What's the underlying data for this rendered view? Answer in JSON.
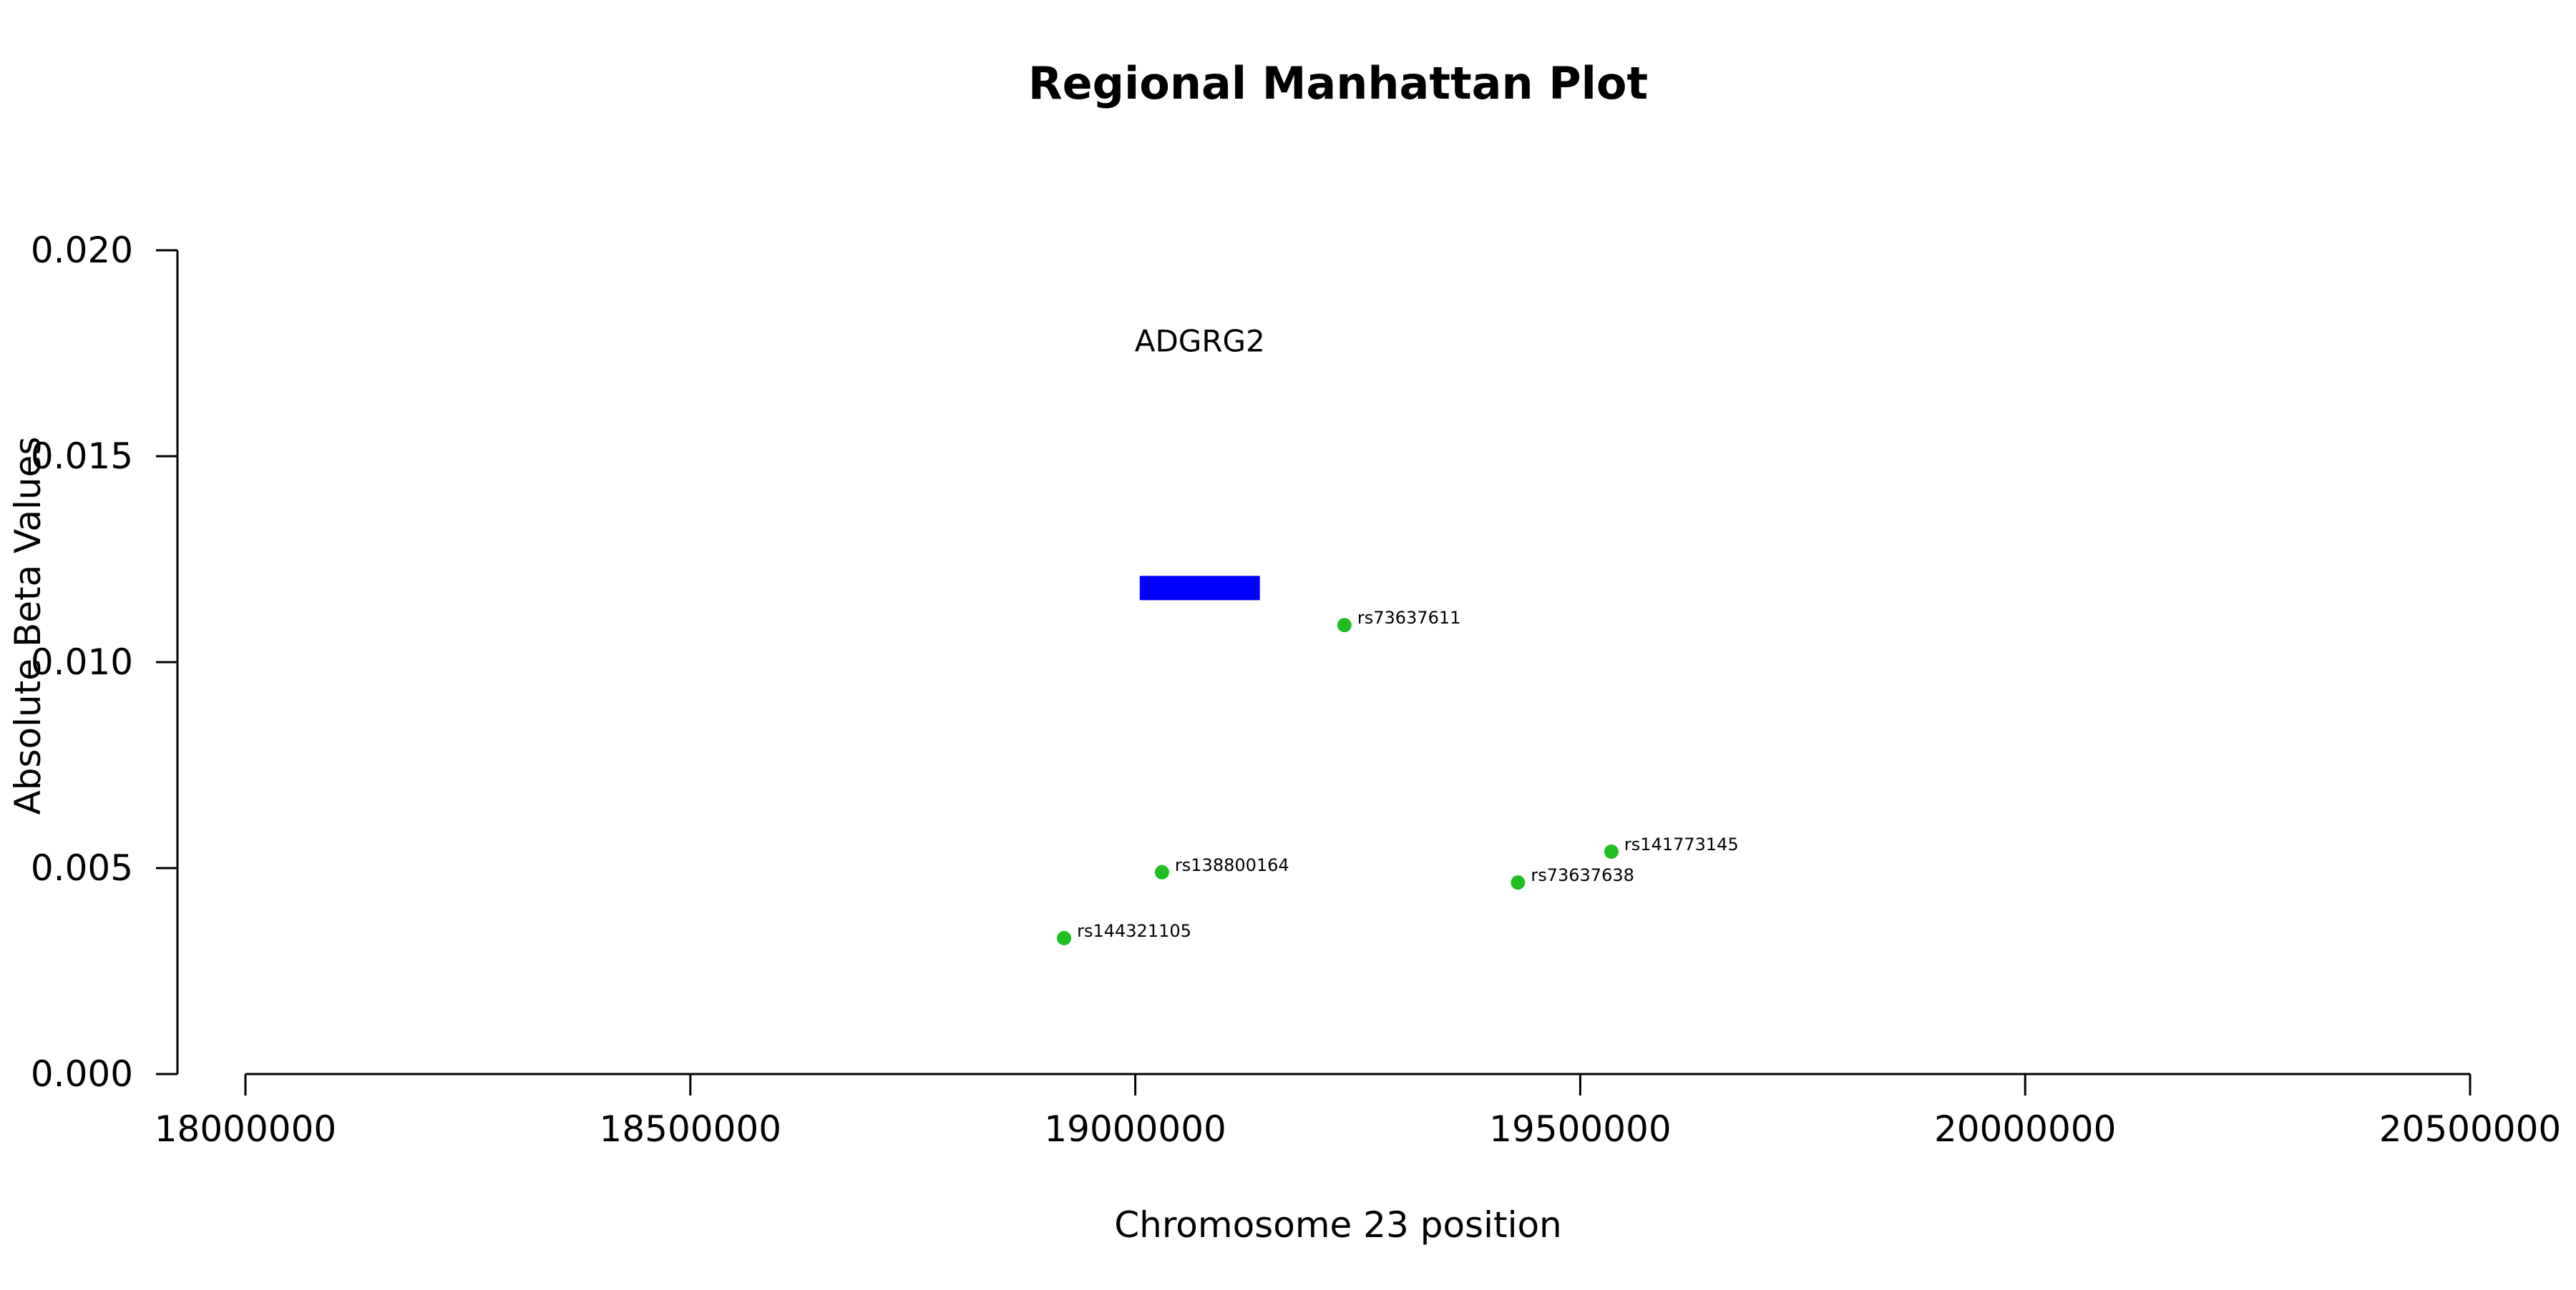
{
  "chart_data": {
    "type": "scatter",
    "title": "Regional Manhattan Plot",
    "xlabel": "Chromosome 23 position",
    "ylabel": "Absolute Beta Values",
    "xlim": [
      18000000,
      20500000
    ],
    "ylim": [
      0,
      0.02
    ],
    "x_ticks": [
      18000000,
      18500000,
      19000000,
      19500000,
      20000000,
      20500000
    ],
    "x_tick_labels": [
      "18000000",
      "18500000",
      "19000000",
      "19500000",
      "20000000",
      "20500000"
    ],
    "y_ticks": [
      0,
      0.005,
      0.01,
      0.015,
      0.02
    ],
    "y_tick_labels": [
      "0.000",
      "0.005",
      "0.010",
      "0.015",
      "0.020"
    ],
    "grid": false,
    "point_color": "#1fbf1f",
    "points": [
      {
        "x": 18920000,
        "y": 0.0033,
        "label": "rs144321105"
      },
      {
        "x": 19030000,
        "y": 0.0049,
        "label": "rs138800164"
      },
      {
        "x": 19235000,
        "y": 0.0109,
        "label": "rs73637611"
      },
      {
        "x": 19430000,
        "y": 0.00465,
        "label": "rs73637638"
      },
      {
        "x": 19535000,
        "y": 0.0054,
        "label": "rs141773145"
      }
    ],
    "genes": [
      {
        "name": "ADGRG2",
        "start": 19005000,
        "end": 19140000,
        "y": 0.0118,
        "label_y": 0.0178,
        "color": "#0000ff"
      }
    ]
  }
}
